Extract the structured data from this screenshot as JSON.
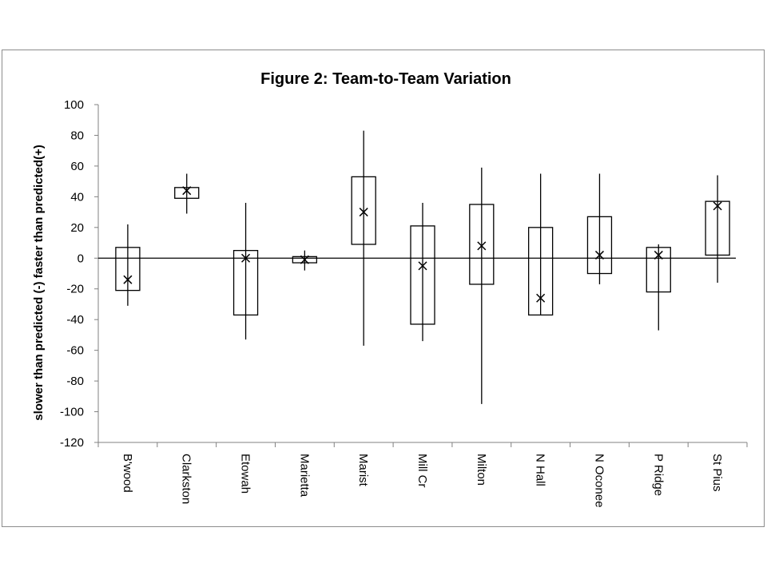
{
  "chart_data": {
    "type": "boxplot",
    "title": "Figure 2: Team-to-Team Variation",
    "ylabel": "slower than predicted (-) faster than predicted(+)",
    "xlabel": "",
    "ylim": [
      -120,
      100
    ],
    "yticks": [
      100,
      80,
      60,
      40,
      20,
      0,
      -20,
      -40,
      -60,
      -80,
      -100,
      -120
    ],
    "grid": false,
    "legend": "none",
    "categories": [
      "B'wood",
      "Clarkston",
      "Etowah",
      "Marietta",
      "Marist",
      "Mill Cr",
      "Milton",
      "N Hall",
      "N Oconee",
      "P Ridge",
      "St Pius"
    ],
    "series": [
      {
        "whisker_high": [
          22,
          55,
          36,
          5,
          83,
          36,
          59,
          55,
          55,
          9,
          54
        ],
        "box_high": [
          7,
          46,
          5,
          1,
          53,
          21,
          35,
          20,
          27,
          7,
          37
        ],
        "mean": [
          -14,
          44,
          0,
          -1,
          30,
          -5,
          8,
          -26,
          2,
          2,
          34
        ],
        "box_low": [
          -21,
          39,
          -37,
          -3,
          9,
          -43,
          -17,
          -37,
          -10,
          -22,
          2
        ],
        "whisker_low": [
          -31,
          29,
          -53,
          -8,
          -57,
          -54,
          -95,
          -37,
          -17,
          -47,
          -16
        ]
      }
    ],
    "colors": {
      "stroke": "#000000",
      "frame": "#8c8c8c",
      "fill": "#ffffff"
    }
  }
}
